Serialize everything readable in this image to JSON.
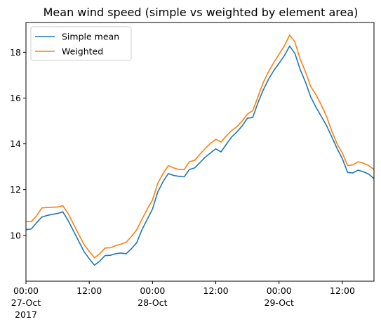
{
  "chart_data": {
    "type": "line",
    "title": "Mean wind speed (simple vs weighted by element area)",
    "xlabel": "",
    "ylabel": "",
    "x_range_hours": [
      0,
      66
    ],
    "ylim": [
      8.0,
      19.3
    ],
    "grid": false,
    "legend_placement": "top-left",
    "yticks": [
      10,
      12,
      14,
      16,
      18
    ],
    "xticks": [
      {
        "hour": 0,
        "lines": [
          "00:00",
          "27-Oct",
          "2017"
        ]
      },
      {
        "hour": 12,
        "lines": [
          "12:00"
        ]
      },
      {
        "hour": 24,
        "lines": [
          "00:00",
          "28-Oct"
        ]
      },
      {
        "hour": 36,
        "lines": [
          "12:00"
        ]
      },
      {
        "hour": 48,
        "lines": [
          "00:00",
          "29-Oct"
        ]
      },
      {
        "hour": 60,
        "lines": [
          "12:00"
        ]
      }
    ],
    "x_hours": [
      0,
      1,
      2,
      3,
      4,
      5,
      6,
      7,
      8,
      9,
      10,
      11,
      12,
      13,
      14,
      15,
      16,
      17,
      18,
      19,
      20,
      21,
      22,
      23,
      24,
      25,
      26,
      27,
      28,
      29,
      30,
      31,
      32,
      33,
      34,
      35,
      36,
      37,
      38,
      39,
      40,
      41,
      42,
      43,
      44,
      45,
      46,
      47,
      48,
      49,
      50,
      51,
      52,
      53,
      54,
      55,
      56,
      57,
      58,
      59,
      60,
      61,
      62,
      63,
      64,
      65,
      66
    ],
    "series": [
      {
        "name": "Simple mean",
        "color": "#1f77b4",
        "values": [
          10.25,
          10.28,
          10.55,
          10.8,
          10.87,
          10.92,
          10.96,
          11.03,
          10.65,
          10.2,
          9.75,
          9.3,
          8.98,
          8.7,
          8.88,
          9.12,
          9.13,
          9.2,
          9.23,
          9.2,
          9.42,
          9.68,
          10.25,
          10.7,
          11.15,
          11.9,
          12.35,
          12.7,
          12.62,
          12.58,
          12.56,
          12.88,
          12.95,
          13.18,
          13.42,
          13.6,
          13.78,
          13.65,
          13.98,
          14.3,
          14.52,
          14.78,
          15.12,
          15.15,
          15.8,
          16.35,
          16.82,
          17.2,
          17.52,
          17.85,
          18.27,
          17.95,
          17.25,
          16.7,
          16.05,
          15.6,
          15.2,
          14.8,
          14.3,
          13.8,
          13.35,
          12.75,
          12.73,
          12.85,
          12.78,
          12.68,
          12.48
        ]
      },
      {
        "name": "Weighted",
        "color": "#ff7f0e",
        "values": [
          10.6,
          10.6,
          10.85,
          11.2,
          11.22,
          11.23,
          11.24,
          11.3,
          10.95,
          10.5,
          10.05,
          9.6,
          9.3,
          9.02,
          9.2,
          9.45,
          9.46,
          9.55,
          9.62,
          9.7,
          9.95,
          10.25,
          10.7,
          11.15,
          11.55,
          12.28,
          12.7,
          13.05,
          12.95,
          12.88,
          12.87,
          13.22,
          13.28,
          13.55,
          13.8,
          14.02,
          14.2,
          14.08,
          14.35,
          14.58,
          14.75,
          15.0,
          15.3,
          15.45,
          16.05,
          16.68,
          17.15,
          17.55,
          17.92,
          18.28,
          18.75,
          18.45,
          17.7,
          17.15,
          16.5,
          16.15,
          15.7,
          15.2,
          14.55,
          14.0,
          13.6,
          13.05,
          13.08,
          13.22,
          13.15,
          13.05,
          12.88
        ]
      }
    ]
  }
}
